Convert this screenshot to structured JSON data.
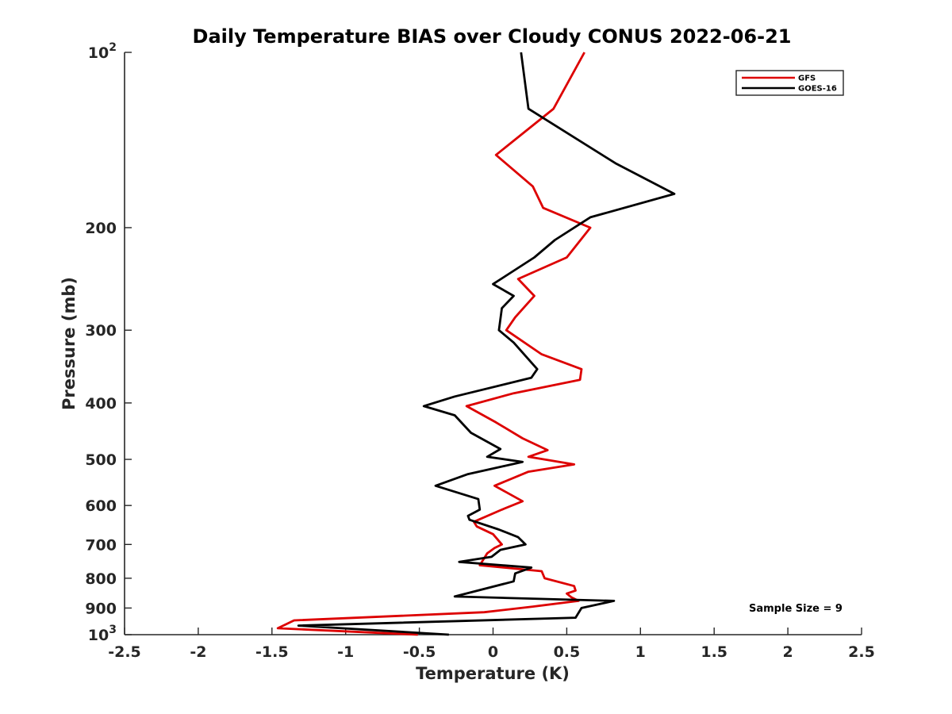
{
  "chart_data": {
    "type": "line",
    "title": "Daily Temperature BIAS over Cloudy CONUS 2022-06-21",
    "xlabel": "Temperature (K)",
    "ylabel": "Pressure (mb)",
    "xlim": [
      -2.5,
      2.5
    ],
    "ylim": [
      1000,
      100
    ],
    "y_scale": "log",
    "y_reversed": true,
    "grid": false,
    "legend_position": "top-right",
    "x_ticks": [
      "-2.5",
      "-2",
      "-1.5",
      "-1",
      "-0.5",
      "0",
      "0.5",
      "1",
      "1.5",
      "2",
      "2.5"
    ],
    "y_ticks": [
      {
        "value": 100,
        "base": "10",
        "exp": "2"
      },
      {
        "value": 200,
        "label": "200"
      },
      {
        "value": 300,
        "label": "300"
      },
      {
        "value": 400,
        "label": "400"
      },
      {
        "value": 500,
        "label": "500"
      },
      {
        "value": 600,
        "label": "600"
      },
      {
        "value": 700,
        "label": "700"
      },
      {
        "value": 800,
        "label": "800"
      },
      {
        "value": 900,
        "label": "900"
      },
      {
        "value": 1000,
        "base": "10",
        "exp": "3"
      }
    ],
    "series": [
      {
        "name": "GFS",
        "color": "#dd0000",
        "points": [
          [
            0.62,
            100
          ],
          [
            0.41,
            125
          ],
          [
            0.02,
            150
          ],
          [
            0.27,
            170
          ],
          [
            0.34,
            185
          ],
          [
            0.66,
            200
          ],
          [
            0.5,
            225
          ],
          [
            0.17,
            245
          ],
          [
            0.28,
            262
          ],
          [
            0.15,
            285
          ],
          [
            0.09,
            300
          ],
          [
            0.33,
            330
          ],
          [
            0.6,
            350
          ],
          [
            0.59,
            365
          ],
          [
            0.14,
            385
          ],
          [
            -0.18,
            405
          ],
          [
            0.02,
            432
          ],
          [
            0.2,
            460
          ],
          [
            0.37,
            482
          ],
          [
            0.24,
            495
          ],
          [
            0.55,
            510
          ],
          [
            0.24,
            525
          ],
          [
            0.01,
            555
          ],
          [
            0.2,
            590
          ],
          [
            0.06,
            610
          ],
          [
            -0.13,
            640
          ],
          [
            -0.11,
            652
          ],
          [
            0.0,
            672
          ],
          [
            0.06,
            700
          ],
          [
            0.01,
            710
          ],
          [
            -0.04,
            725
          ],
          [
            -0.09,
            760
          ],
          [
            0.33,
            778
          ],
          [
            0.35,
            800
          ],
          [
            0.55,
            825
          ],
          [
            0.56,
            840
          ],
          [
            0.5,
            850
          ],
          [
            0.53,
            862
          ],
          [
            0.58,
            875
          ],
          [
            0.27,
            895
          ],
          [
            -0.06,
            915
          ],
          [
            -1.35,
            945
          ],
          [
            -1.46,
            975
          ],
          [
            -0.51,
            1000
          ]
        ]
      },
      {
        "name": "GOES-16",
        "color": "#000000",
        "points": [
          [
            0.19,
            100
          ],
          [
            0.24,
            125
          ],
          [
            0.83,
            155
          ],
          [
            1.23,
            175
          ],
          [
            0.66,
            192
          ],
          [
            0.42,
            210
          ],
          [
            0.28,
            225
          ],
          [
            0.0,
            250
          ],
          [
            0.14,
            262
          ],
          [
            0.06,
            275
          ],
          [
            0.04,
            300
          ],
          [
            0.14,
            315
          ],
          [
            0.3,
            350
          ],
          [
            0.26,
            362
          ],
          [
            -0.26,
            390
          ],
          [
            -0.47,
            405
          ],
          [
            -0.26,
            420
          ],
          [
            -0.15,
            450
          ],
          [
            0.05,
            480
          ],
          [
            -0.04,
            495
          ],
          [
            0.2,
            505
          ],
          [
            -0.17,
            530
          ],
          [
            -0.39,
            555
          ],
          [
            -0.1,
            585
          ],
          [
            -0.09,
            610
          ],
          [
            -0.17,
            625
          ],
          [
            -0.16,
            635
          ],
          [
            0.04,
            660
          ],
          [
            0.17,
            680
          ],
          [
            0.22,
            700
          ],
          [
            0.05,
            715
          ],
          [
            -0.01,
            735
          ],
          [
            -0.23,
            750
          ],
          [
            0.26,
            767
          ],
          [
            0.15,
            785
          ],
          [
            0.14,
            810
          ],
          [
            -0.26,
            860
          ],
          [
            0.82,
            875
          ],
          [
            0.6,
            900
          ],
          [
            0.56,
            935
          ],
          [
            -1.32,
            965
          ],
          [
            -0.3,
            1000
          ]
        ]
      }
    ],
    "annotation": "Sample Size = 9"
  }
}
